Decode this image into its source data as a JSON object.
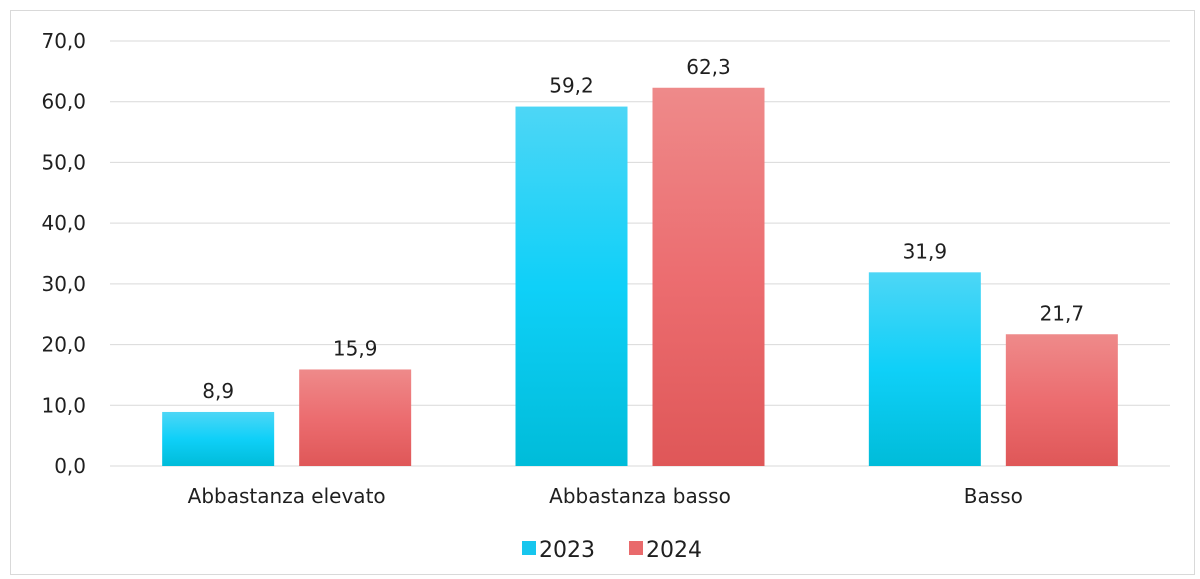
{
  "chart_data": {
    "type": "bar",
    "categories": [
      "Abbastanza elevato",
      "Abbastanza basso",
      "Basso"
    ],
    "series": [
      {
        "name": "2023",
        "values": [
          8.9,
          59.2,
          31.9
        ],
        "labels": [
          "8,9",
          "59,2",
          "31,9"
        ],
        "color": "#17c6ee"
      },
      {
        "name": "2024",
        "values": [
          15.9,
          62.3,
          21.7
        ],
        "labels": [
          "15,9",
          "62,3",
          "21,7"
        ],
        "color": "#e96a6c"
      }
    ],
    "ylim": [
      0,
      70
    ],
    "yticks": [
      0,
      10,
      20,
      30,
      40,
      50,
      60,
      70
    ],
    "ytick_labels": [
      "0,0",
      "10,0",
      "20,0",
      "30,0",
      "40,0",
      "50,0",
      "60,0",
      "70,0"
    ],
    "grid": true,
    "legend_position": "bottom",
    "title": "",
    "xlabel": "",
    "ylabel": ""
  }
}
